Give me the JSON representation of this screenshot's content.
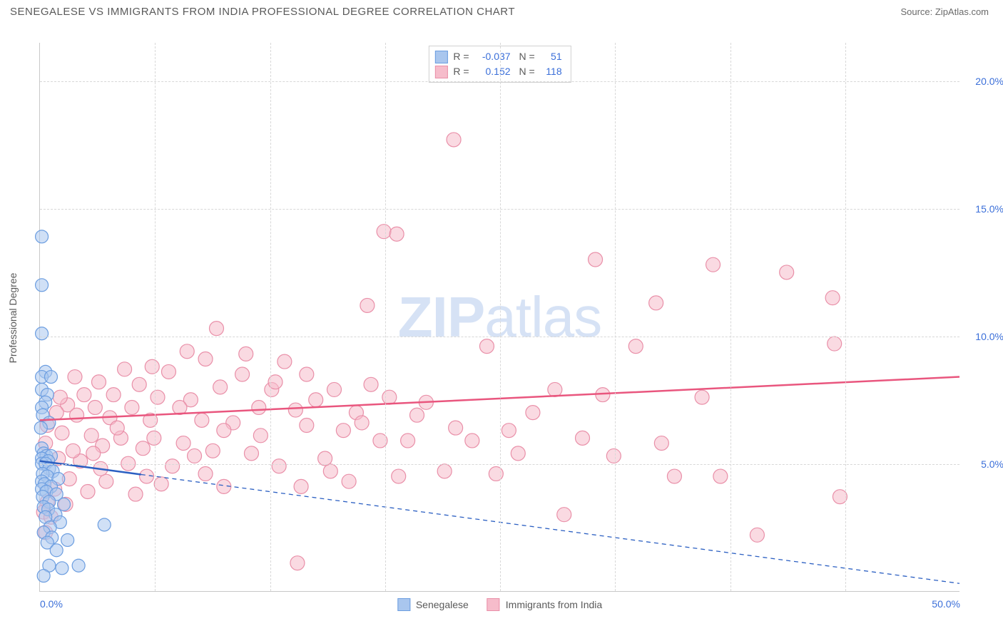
{
  "header": {
    "title": "SENEGALESE VS IMMIGRANTS FROM INDIA PROFESSIONAL DEGREE CORRELATION CHART",
    "source": "Source: ZipAtlas.com"
  },
  "watermark": {
    "text_prefix": "ZIP",
    "text_suffix": "atlas"
  },
  "chart": {
    "type": "scatter",
    "ylabel": "Professional Degree",
    "xlim": [
      0,
      50
    ],
    "ylim": [
      0,
      21.5
    ],
    "y_ticks": [
      {
        "v": 5,
        "label": "5.0%"
      },
      {
        "v": 10,
        "label": "10.0%"
      },
      {
        "v": 15,
        "label": "15.0%"
      },
      {
        "v": 20,
        "label": "20.0%"
      }
    ],
    "x_ticks": [
      {
        "v": 0,
        "label": "0.0%",
        "align": "left"
      },
      {
        "v": 50,
        "label": "50.0%",
        "align": "right"
      }
    ],
    "x_grid": [
      6.25,
      12.5,
      18.75,
      25,
      31.25,
      37.5,
      43.75
    ],
    "background_color": "#ffffff",
    "grid_color": "#d8d8d8",
    "series": {
      "senegalese": {
        "label": "Senegalese",
        "fill": "#a9c6ee",
        "stroke": "#6b9de0",
        "line_color": "#2b5fc2",
        "marker_radius": 9,
        "fill_opacity": 0.55,
        "R": "-0.037",
        "N": "51",
        "trend": {
          "x1": 0,
          "y1": 5.1,
          "x2": 50,
          "y2": 0.3,
          "solid_until_x": 5.5
        },
        "points": [
          [
            0.1,
            13.9
          ],
          [
            0.1,
            12.0
          ],
          [
            0.1,
            10.1
          ],
          [
            0.3,
            8.6
          ],
          [
            0.1,
            8.4
          ],
          [
            0.6,
            8.4
          ],
          [
            0.1,
            7.9
          ],
          [
            0.4,
            7.7
          ],
          [
            0.3,
            7.4
          ],
          [
            0.1,
            7.2
          ],
          [
            0.15,
            6.9
          ],
          [
            0.5,
            6.6
          ],
          [
            0.05,
            6.4
          ],
          [
            0.1,
            5.6
          ],
          [
            0.2,
            5.4
          ],
          [
            0.35,
            5.3
          ],
          [
            0.6,
            5.3
          ],
          [
            0.1,
            5.2
          ],
          [
            0.45,
            5.1
          ],
          [
            0.1,
            5.0
          ],
          [
            0.3,
            5.0
          ],
          [
            0.5,
            4.8
          ],
          [
            0.7,
            4.7
          ],
          [
            0.15,
            4.6
          ],
          [
            0.4,
            4.5
          ],
          [
            1.0,
            4.4
          ],
          [
            0.1,
            4.3
          ],
          [
            0.25,
            4.2
          ],
          [
            0.6,
            4.1
          ],
          [
            0.1,
            4.0
          ],
          [
            0.35,
            3.9
          ],
          [
            0.9,
            3.8
          ],
          [
            0.15,
            3.7
          ],
          [
            0.5,
            3.5
          ],
          [
            1.3,
            3.4
          ],
          [
            0.2,
            3.3
          ],
          [
            0.45,
            3.2
          ],
          [
            0.85,
            3.0
          ],
          [
            0.3,
            2.9
          ],
          [
            1.1,
            2.7
          ],
          [
            0.55,
            2.5
          ],
          [
            3.5,
            2.6
          ],
          [
            0.2,
            2.3
          ],
          [
            0.65,
            2.1
          ],
          [
            1.5,
            2.0
          ],
          [
            0.4,
            1.9
          ],
          [
            0.9,
            1.6
          ],
          [
            2.1,
            1.0
          ],
          [
            0.5,
            1.0
          ],
          [
            1.2,
            0.9
          ],
          [
            0.2,
            0.6
          ]
        ]
      },
      "india": {
        "label": "Immigants from India",
        "legend_label": "Immigrants from India",
        "fill": "#f6bccb",
        "stroke": "#e98fa8",
        "line_color": "#e9567e",
        "marker_radius": 10,
        "fill_opacity": 0.55,
        "R": "0.152",
        "N": "118",
        "trend": {
          "x1": 0,
          "y1": 6.7,
          "x2": 50,
          "y2": 8.4,
          "solid_until_x": 50
        },
        "points": [
          [
            22.5,
            17.7
          ],
          [
            18.7,
            14.1
          ],
          [
            19.4,
            14.0
          ],
          [
            30.2,
            13.0
          ],
          [
            36.6,
            12.8
          ],
          [
            40.6,
            12.5
          ],
          [
            43.1,
            11.5
          ],
          [
            33.5,
            11.3
          ],
          [
            17.8,
            11.2
          ],
          [
            24.3,
            9.6
          ],
          [
            43.2,
            9.7
          ],
          [
            32.4,
            9.6
          ],
          [
            9.6,
            10.3
          ],
          [
            8.0,
            9.4
          ],
          [
            11.2,
            9.3
          ],
          [
            9.0,
            9.1
          ],
          [
            13.3,
            9.0
          ],
          [
            6.1,
            8.8
          ],
          [
            4.6,
            8.7
          ],
          [
            7.0,
            8.6
          ],
          [
            11.0,
            8.5
          ],
          [
            14.5,
            8.5
          ],
          [
            1.9,
            8.4
          ],
          [
            3.2,
            8.2
          ],
          [
            5.4,
            8.1
          ],
          [
            9.8,
            8.0
          ],
          [
            12.6,
            7.9
          ],
          [
            16.0,
            7.9
          ],
          [
            2.4,
            7.7
          ],
          [
            4.0,
            7.7
          ],
          [
            6.4,
            7.6
          ],
          [
            8.2,
            7.5
          ],
          [
            15.0,
            7.5
          ],
          [
            19.0,
            7.6
          ],
          [
            28.0,
            7.9
          ],
          [
            30.6,
            7.7
          ],
          [
            36.0,
            7.6
          ],
          [
            1.5,
            7.3
          ],
          [
            3.0,
            7.2
          ],
          [
            5.0,
            7.2
          ],
          [
            7.6,
            7.2
          ],
          [
            11.9,
            7.2
          ],
          [
            13.9,
            7.1
          ],
          [
            17.2,
            7.0
          ],
          [
            20.5,
            6.9
          ],
          [
            2.0,
            6.9
          ],
          [
            3.8,
            6.8
          ],
          [
            6.0,
            6.7
          ],
          [
            8.8,
            6.7
          ],
          [
            10.5,
            6.6
          ],
          [
            14.5,
            6.5
          ],
          [
            16.5,
            6.3
          ],
          [
            22.6,
            6.4
          ],
          [
            25.5,
            6.3
          ],
          [
            1.2,
            6.2
          ],
          [
            2.8,
            6.1
          ],
          [
            4.4,
            6.0
          ],
          [
            18.5,
            5.9
          ],
          [
            20.0,
            5.9
          ],
          [
            23.5,
            5.9
          ],
          [
            29.5,
            6.0
          ],
          [
            33.8,
            5.8
          ],
          [
            3.4,
            5.7
          ],
          [
            5.6,
            5.6
          ],
          [
            9.4,
            5.5
          ],
          [
            11.5,
            5.4
          ],
          [
            26.0,
            5.4
          ],
          [
            1.0,
            5.2
          ],
          [
            2.2,
            5.1
          ],
          [
            4.8,
            5.0
          ],
          [
            7.2,
            4.9
          ],
          [
            13.0,
            4.9
          ],
          [
            15.8,
            4.7
          ],
          [
            19.5,
            4.5
          ],
          [
            22.0,
            4.7
          ],
          [
            24.8,
            4.6
          ],
          [
            34.5,
            4.5
          ],
          [
            37.0,
            4.5
          ],
          [
            1.6,
            4.4
          ],
          [
            3.6,
            4.3
          ],
          [
            6.6,
            4.2
          ],
          [
            10.0,
            4.1
          ],
          [
            14.2,
            4.1
          ],
          [
            16.8,
            4.3
          ],
          [
            0.8,
            4.0
          ],
          [
            2.6,
            3.9
          ],
          [
            5.2,
            3.8
          ],
          [
            0.4,
            3.5
          ],
          [
            1.4,
            3.4
          ],
          [
            0.2,
            3.1
          ],
          [
            0.6,
            2.9
          ],
          [
            28.5,
            3.0
          ],
          [
            43.5,
            3.7
          ],
          [
            39.0,
            2.2
          ],
          [
            14.0,
            1.1
          ],
          [
            0.3,
            2.3
          ],
          [
            0.3,
            5.8
          ],
          [
            0.4,
            6.5
          ],
          [
            0.9,
            7.0
          ],
          [
            1.1,
            7.6
          ],
          [
            1.8,
            5.5
          ],
          [
            2.9,
            5.4
          ],
          [
            6.2,
            6.0
          ],
          [
            8.4,
            5.3
          ],
          [
            12.0,
            6.1
          ],
          [
            18.0,
            8.1
          ],
          [
            10.0,
            6.3
          ],
          [
            7.8,
            5.8
          ],
          [
            4.2,
            6.4
          ],
          [
            5.8,
            4.5
          ],
          [
            3.3,
            4.8
          ],
          [
            21.0,
            7.4
          ],
          [
            26.8,
            7.0
          ],
          [
            31.2,
            5.3
          ],
          [
            12.8,
            8.2
          ],
          [
            15.5,
            5.2
          ],
          [
            17.5,
            6.6
          ],
          [
            9.0,
            4.6
          ]
        ]
      }
    }
  }
}
